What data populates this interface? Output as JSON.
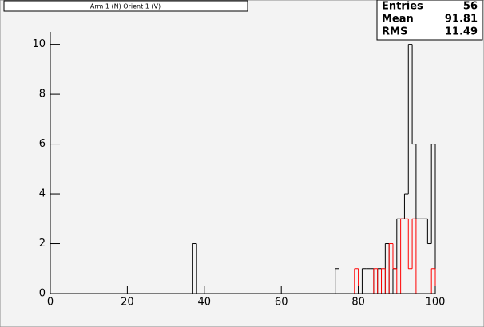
{
  "chart_data": {
    "type": "histogram",
    "title": "Arm 1 (N) Orient 1 (V)",
    "stats": [
      {
        "label": "Entries",
        "value": 56
      },
      {
        "label": "Mean",
        "value": 91.81
      },
      {
        "label": "RMS",
        "value": 11.49
      }
    ],
    "bins": [
      0,
      1,
      2,
      3,
      4,
      5,
      6,
      7,
      8,
      9,
      10,
      11,
      12,
      13,
      14,
      15,
      16,
      17,
      18,
      19,
      20,
      21,
      22,
      23,
      24,
      25,
      26,
      27,
      28,
      29,
      30,
      31,
      32,
      33,
      34,
      35,
      36,
      37,
      38,
      39,
      40,
      41,
      42,
      43,
      44,
      45,
      46,
      47,
      48,
      49,
      50,
      51,
      52,
      53,
      54,
      55,
      56,
      57,
      58,
      59,
      60,
      61,
      62,
      63,
      64,
      65,
      66,
      67,
      68,
      69,
      70,
      71,
      72,
      73,
      74,
      75,
      76,
      77,
      78,
      79,
      80,
      81,
      82,
      83,
      84,
      85,
      86,
      87,
      88,
      89,
      90,
      91,
      92,
      93,
      94,
      95,
      96,
      97,
      98,
      99,
      100
    ],
    "series": [
      {
        "color": "#000000",
        "values": [
          0,
          0,
          0,
          0,
          0,
          0,
          0,
          0,
          0,
          0,
          0,
          0,
          0,
          0,
          0,
          0,
          0,
          0,
          0,
          0,
          0,
          0,
          0,
          0,
          0,
          0,
          0,
          0,
          0,
          0,
          0,
          0,
          0,
          0,
          0,
          0,
          0,
          2,
          0,
          0,
          0,
          0,
          0,
          0,
          0,
          0,
          0,
          0,
          0,
          0,
          0,
          0,
          0,
          0,
          0,
          0,
          0,
          0,
          0,
          0,
          0,
          0,
          0,
          0,
          0,
          0,
          0,
          0,
          0,
          0,
          0,
          0,
          0,
          0,
          1,
          0,
          0,
          0,
          0,
          0,
          0,
          1,
          1,
          1,
          0,
          1,
          0,
          2,
          0,
          1,
          3,
          3,
          4,
          10,
          6,
          3,
          3,
          3,
          2,
          6
        ]
      },
      {
        "color": "#ff0000",
        "values": [
          0,
          0,
          0,
          0,
          0,
          0,
          0,
          0,
          0,
          0,
          0,
          0,
          0,
          0,
          0,
          0,
          0,
          0,
          0,
          0,
          0,
          0,
          0,
          0,
          0,
          0,
          0,
          0,
          0,
          0,
          0,
          0,
          0,
          0,
          0,
          0,
          0,
          0,
          0,
          0,
          0,
          0,
          0,
          0,
          0,
          0,
          0,
          0,
          0,
          0,
          0,
          0,
          0,
          0,
          0,
          0,
          0,
          0,
          0,
          0,
          0,
          0,
          0,
          0,
          0,
          0,
          0,
          0,
          0,
          0,
          0,
          0,
          0,
          0,
          0,
          0,
          0,
          0,
          0,
          1,
          0,
          0,
          0,
          0,
          1,
          0,
          1,
          0,
          2,
          1,
          0,
          3,
          3,
          1,
          3,
          0,
          0,
          0,
          0,
          1
        ]
      }
    ],
    "xlim": [
      0,
      100
    ],
    "xticks": [
      0,
      20,
      40,
      60,
      80,
      100
    ],
    "ylim": [
      0,
      10.5
    ],
    "yticks": [
      0,
      2,
      4,
      6,
      8,
      10
    ]
  }
}
